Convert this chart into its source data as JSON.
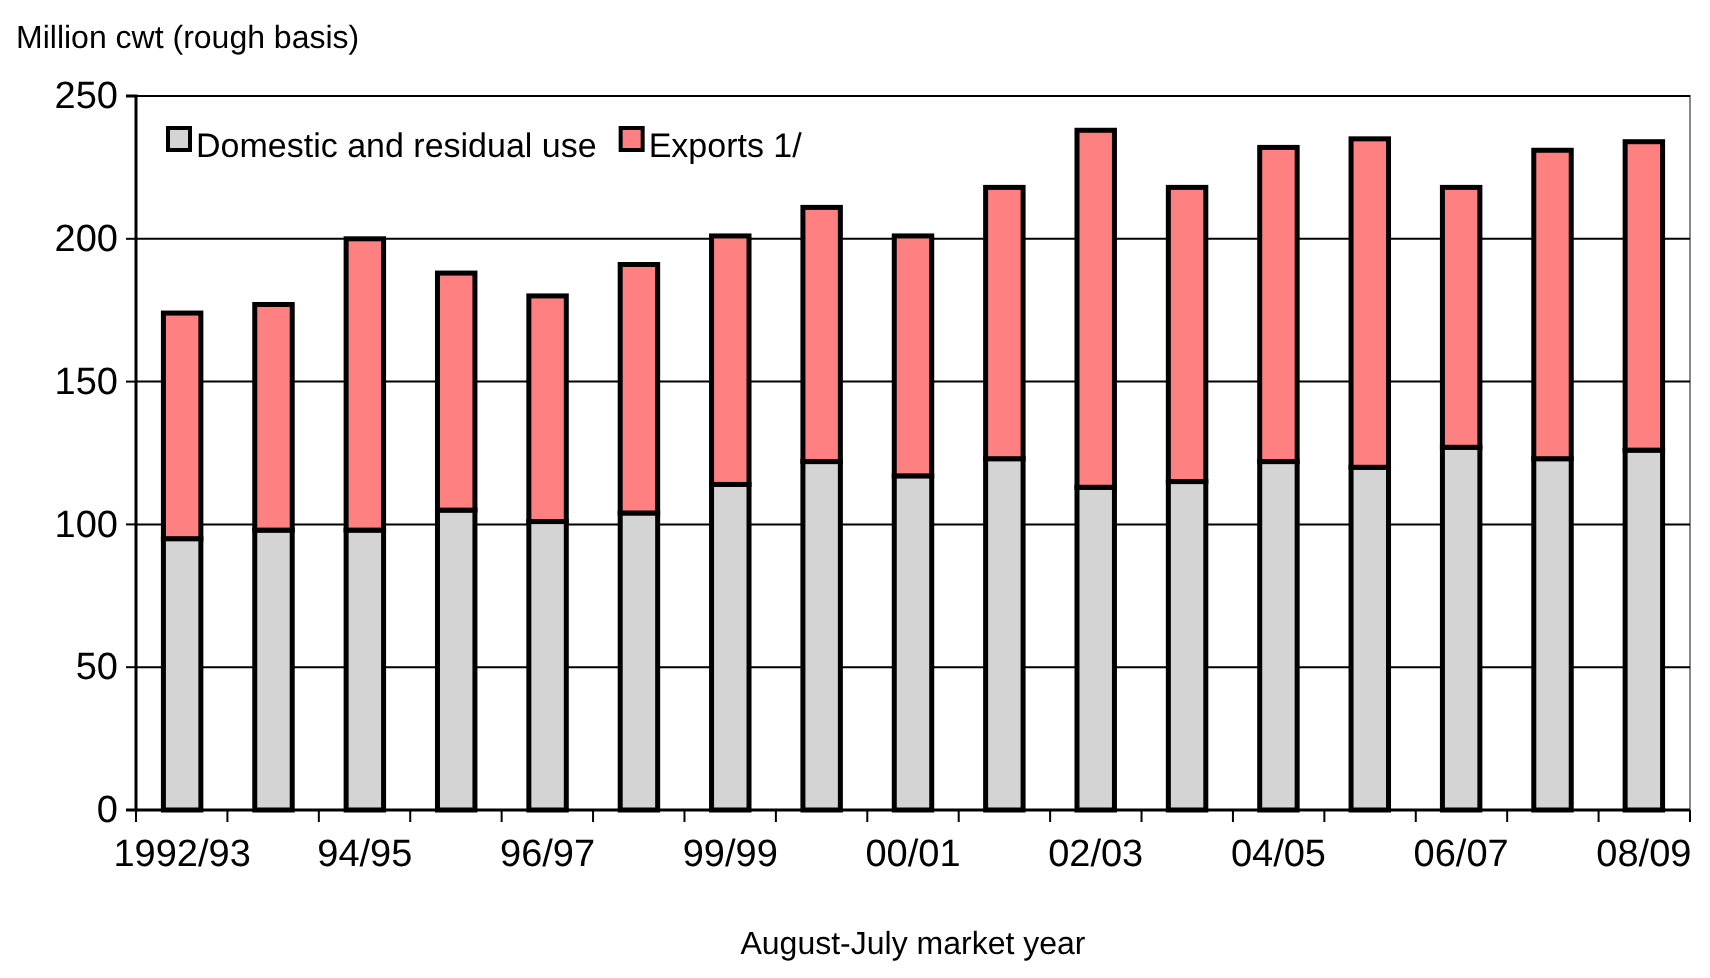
{
  "chart_data": {
    "type": "bar",
    "stacked": true,
    "ylabel": "Million cwt (rough basis)",
    "xlabel": "August-July market year",
    "categories": [
      "1992/93",
      null,
      "94/95",
      null,
      "96/97",
      null,
      "99/99",
      null,
      "00/01",
      null,
      "02/03",
      null,
      "04/05",
      null,
      "06/07",
      null,
      "08/09"
    ],
    "series": [
      {
        "name": "Domestic and residual use",
        "color": "#d4d4d4",
        "values": [
          95,
          98,
          98,
          105,
          101,
          104,
          114,
          122,
          117,
          123,
          113,
          115,
          122,
          120,
          127,
          123,
          126
        ]
      },
      {
        "name": "Exports 1/",
        "color": "#ff8080",
        "values": [
          79,
          79,
          102,
          83,
          79,
          87,
          87,
          89,
          84,
          95,
          125,
          103,
          110,
          115,
          91,
          108,
          108
        ]
      }
    ],
    "ylim": [
      0,
      250
    ],
    "yticks": [
      0,
      50,
      100,
      150,
      200,
      250
    ],
    "grid": "y",
    "legend": "top left"
  }
}
